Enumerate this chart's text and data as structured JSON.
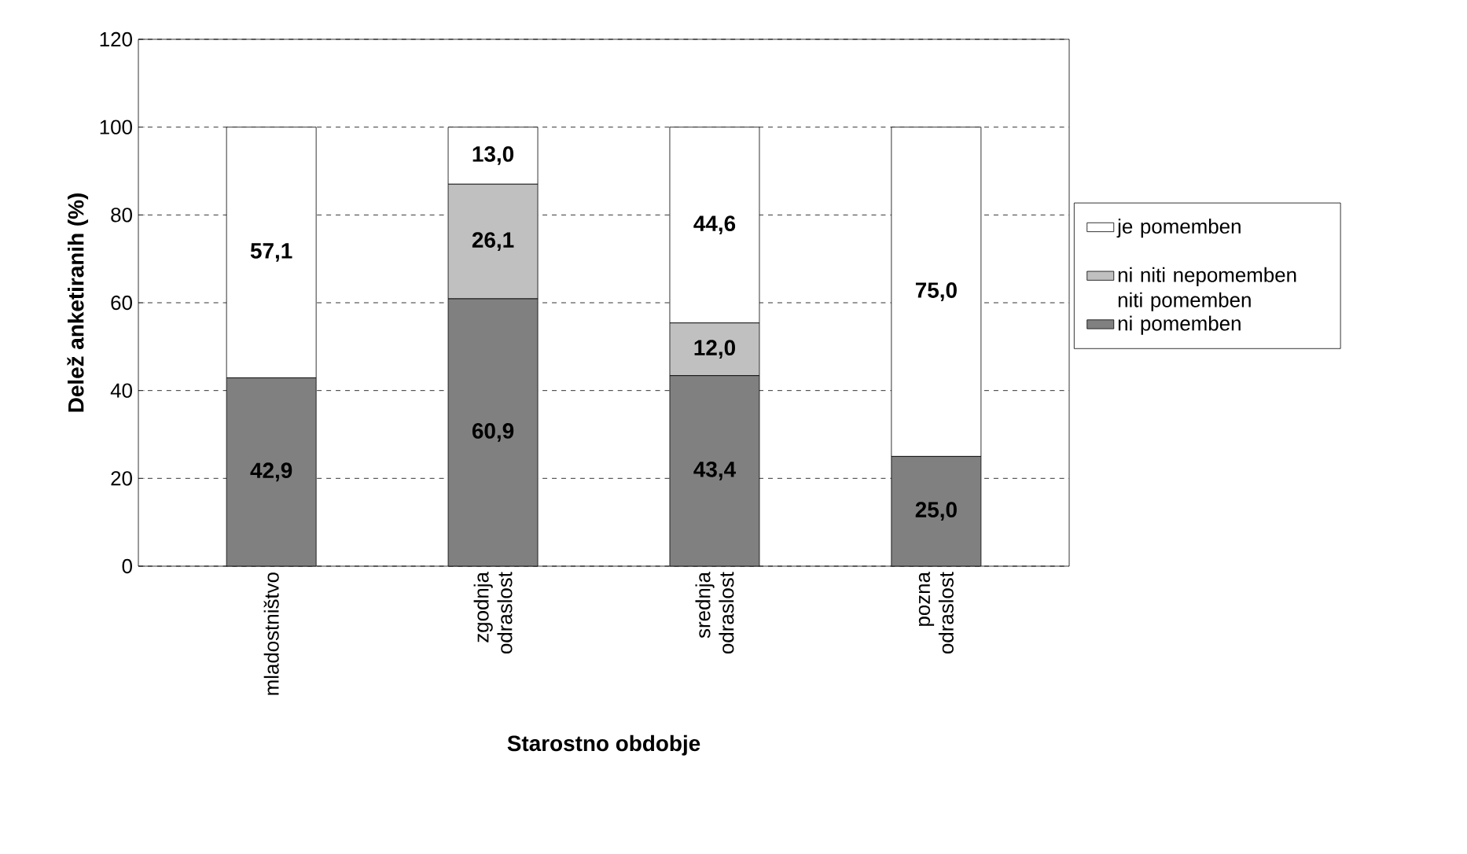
{
  "chart_data": {
    "type": "bar",
    "stacked": true,
    "xlabel": "Starostno obdobje",
    "ylabel": "Delež anketiranih (%)",
    "categories": [
      "mladostništvo",
      "zgodnja odraslost",
      "srednja odraslost",
      "pozna odraslost"
    ],
    "series": [
      {
        "name": "ni pomemben",
        "color": "#808080",
        "values": [
          42.9,
          60.9,
          43.4,
          25.0
        ],
        "value_labels": [
          "42,9",
          "60,9",
          "43,4",
          "25,0"
        ]
      },
      {
        "name": "ni niti nepomemben niti pomemben",
        "color": "#c0c0c0",
        "values": [
          0,
          26.1,
          12.0,
          0
        ],
        "value_labels": [
          null,
          "26,1",
          "12,0",
          null
        ]
      },
      {
        "name": "je pomemben",
        "color": "#ffffff",
        "values": [
          57.1,
          13.0,
          44.6,
          75.0
        ],
        "value_labels": [
          "57,1",
          "13,0",
          "44,6",
          "75,0"
        ]
      }
    ],
    "ylim": [
      0,
      120
    ],
    "yticks": [
      0,
      20,
      40,
      60,
      80,
      100,
      120
    ],
    "grid": "y",
    "legend": "right"
  }
}
